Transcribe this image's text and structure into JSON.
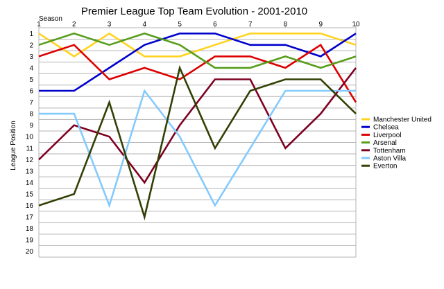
{
  "chart_data": {
    "type": "line",
    "title": "Premier League Top Team Evolution - 2001-2010",
    "xlabel": "Season",
    "ylabel": "League Position",
    "x": [
      1,
      2,
      3,
      4,
      5,
      6,
      7,
      8,
      9,
      10
    ],
    "xlim": [
      1,
      10
    ],
    "ylim": [
      20,
      1
    ],
    "y_inverted": true,
    "y_ticks": [
      1,
      2,
      3,
      4,
      5,
      6,
      7,
      8,
      9,
      10,
      11,
      12,
      13,
      14,
      15,
      16,
      17,
      18,
      19,
      20
    ],
    "grid": "horizontal",
    "x_axis_position": "top",
    "legend_position": "right",
    "series": [
      {
        "name": "Manchester United",
        "color": "#ffd320",
        "values": [
          1,
          3,
          1,
          3,
          3,
          2,
          1,
          1,
          1,
          2
        ]
      },
      {
        "name": "Chelsea",
        "color": "#0000cc",
        "values": [
          6,
          6,
          4,
          2,
          1,
          1,
          2,
          2,
          3,
          1
        ]
      },
      {
        "name": "Liverpool",
        "color": "#dd0000",
        "values": [
          3,
          2,
          5,
          4,
          5,
          3,
          3,
          4,
          2,
          7
        ]
      },
      {
        "name": "Arsenal",
        "color": "#579d1c",
        "values": [
          2,
          1,
          2,
          1,
          2,
          4,
          4,
          3,
          4,
          3
        ]
      },
      {
        "name": "Tottenham",
        "color": "#7e0021",
        "values": [
          12,
          9,
          10,
          14,
          9,
          5,
          5,
          11,
          8,
          4
        ]
      },
      {
        "name": "Aston Villa",
        "color": "#83caff",
        "values": [
          8,
          8,
          16,
          6,
          10,
          16,
          11,
          6,
          6,
          6
        ]
      },
      {
        "name": "Everton",
        "color": "#314004",
        "values": [
          16,
          15,
          7,
          17,
          4,
          11,
          6,
          5,
          5,
          8
        ]
      }
    ]
  }
}
